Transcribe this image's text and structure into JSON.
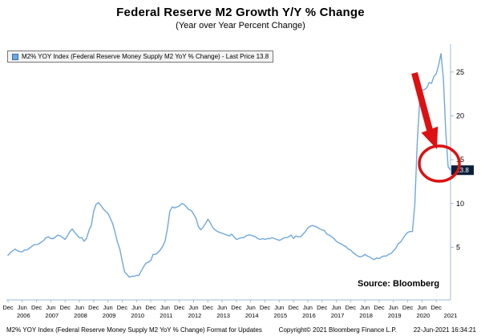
{
  "title": "Federal Reserve M2 Growth Y/Y % Change",
  "subtitle": "(Year over Year Percent Change)",
  "legend": {
    "label": "M2% YOY Index (Federal Reserve Money Supply M2 YoY % Change) - Last Price 13.8"
  },
  "source": "Source: Bloomberg",
  "last_price_badge": "13.8",
  "footer": {
    "left": "M2% YOY Index (Federal Reserve Money Supply M2 YoY % Change) Format for Updates",
    "copyright": "Copyright© 2021 Bloomberg Finance L.P.",
    "datetime": "22-Jun-2021 16:34:21"
  },
  "colors": {
    "line": "#6fa8dc",
    "axis": "#9dbbd8",
    "tick_text": "#000000",
    "annotation": "#dd1111",
    "badge_bg": "#0b1f3a",
    "badge_text": "#ffffff",
    "legend_swatch": "#6fa8dc"
  },
  "chart_data": {
    "type": "line",
    "title": "Federal Reserve M2 Growth Y/Y % Change",
    "subtitle": "(Year over Year Percent Change)",
    "series_name": "M2% YOY Index",
    "frequency": "monthly",
    "x_start": "Dec 2005",
    "x_end": "Jun 2021",
    "ylim": [
      -1,
      28
    ],
    "y_ticks": [
      5,
      10,
      15,
      20,
      25
    ],
    "grid": false,
    "legend_position": "top-left",
    "last_value": 13.8,
    "x_month_ticks": [
      "Dec",
      "Jun",
      "Dec",
      "Jun",
      "Dec",
      "Jun",
      "Dec",
      "Jun",
      "Dec",
      "Jun",
      "Dec",
      "Jun",
      "Dec",
      "Jun",
      "Dec",
      "Jun",
      "Dec",
      "Jun",
      "Dec",
      "Jun",
      "Dec",
      "Jun",
      "Dec",
      "Jun",
      "Dec",
      "Jun",
      "Dec",
      "Jun",
      "Dec",
      "Jun",
      "Dec"
    ],
    "x_year_ticks": [
      "2006",
      "2007",
      "2008",
      "2009",
      "2010",
      "2011",
      "2012",
      "2013",
      "2014",
      "2015",
      "2016",
      "2017",
      "2018",
      "2019",
      "2020",
      "2021"
    ],
    "values": [
      4.1,
      4.4,
      4.6,
      4.8,
      4.6,
      4.5,
      4.5,
      4.7,
      4.7,
      4.9,
      5.1,
      5.3,
      5.3,
      5.4,
      5.6,
      5.8,
      6.1,
      6.2,
      6.0,
      6.0,
      6.2,
      6.4,
      6.3,
      6.1,
      5.9,
      6.3,
      6.8,
      7.1,
      6.7,
      6.4,
      6.1,
      6.1,
      5.7,
      6.0,
      6.9,
      7.5,
      9.1,
      9.9,
      10.1,
      9.8,
      9.4,
      9.1,
      8.9,
      8.3,
      7.7,
      6.7,
      5.6,
      4.8,
      3.4,
      2.2,
      1.9,
      1.6,
      1.7,
      1.7,
      1.8,
      1.8,
      2.3,
      2.8,
      3.2,
      3.3,
      3.5,
      4.2,
      4.2,
      4.4,
      4.7,
      5.1,
      5.7,
      7.1,
      9.1,
      9.6,
      9.5,
      9.6,
      9.7,
      10.0,
      9.9,
      9.6,
      9.3,
      9.2,
      8.8,
      8.3,
      7.4,
      7.0,
      7.3,
      7.7,
      8.2,
      7.8,
      7.3,
      7.0,
      6.8,
      6.7,
      6.6,
      6.5,
      6.4,
      6.3,
      6.5,
      6.2,
      5.9,
      6.0,
      6.1,
      6.1,
      6.3,
      6.4,
      6.4,
      6.3,
      6.2,
      6.0,
      5.9,
      6.0,
      5.9,
      6.0,
      6.0,
      6.1,
      6.0,
      5.9,
      5.8,
      5.9,
      6.1,
      6.1,
      6.2,
      6.4,
      6.0,
      6.3,
      6.2,
      6.2,
      6.5,
      6.8,
      7.2,
      7.4,
      7.5,
      7.4,
      7.3,
      7.1,
      7.0,
      6.9,
      6.5,
      6.4,
      6.2,
      6.0,
      5.7,
      5.5,
      5.4,
      5.2,
      5.1,
      4.8,
      4.7,
      4.4,
      4.2,
      4.0,
      3.9,
      4.0,
      4.2,
      4.0,
      3.9,
      3.7,
      3.6,
      3.8,
      3.7,
      3.9,
      4.0,
      4.0,
      4.2,
      4.3,
      4.6,
      4.9,
      5.4,
      5.6,
      6.0,
      6.4,
      6.7,
      6.8,
      6.8,
      10.0,
      17.0,
      21.5,
      22.9,
      23.0,
      23.2,
      23.8,
      23.7,
      24.5,
      24.8,
      25.8,
      27.1,
      24.2,
      18.1,
      14.2,
      13.8
    ]
  }
}
